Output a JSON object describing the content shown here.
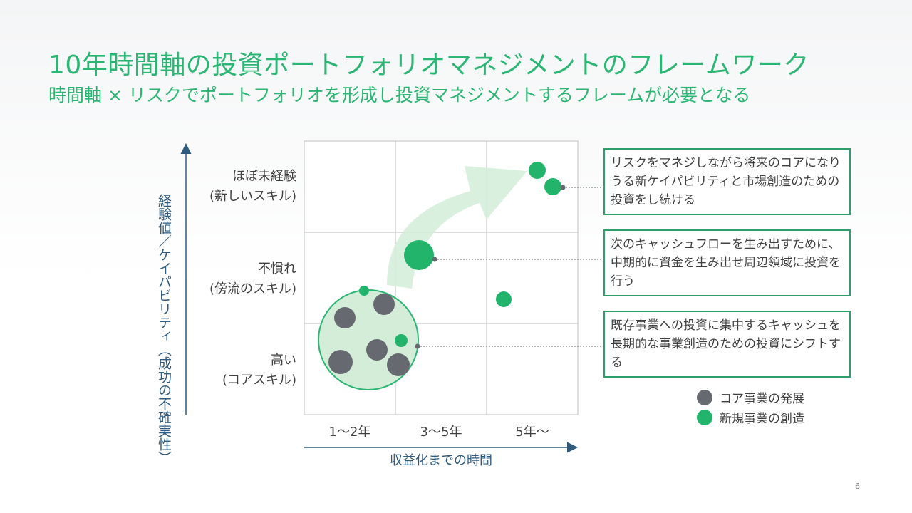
{
  "title": "10年時間軸の投資ポートフォリオマネジメントのフレームワーク",
  "subtitle": "時間軸 × リスクでポートフォリオを形成し投資マネジメントするフレームが必要となる",
  "y_axis_label": "経験値／ケイパビリティ（成功の不確実性）",
  "x_axis_label": "収益化までの時間",
  "rows": [
    {
      "line1": "ほぼ未経験",
      "line2": "(新しいスキル)"
    },
    {
      "line1": "不慣れ",
      "line2": "(傍流のスキル)"
    },
    {
      "line1": "高い",
      "line2": "(コアスキル)"
    }
  ],
  "columns": [
    "1～2年",
    "3～5年",
    "5年～"
  ],
  "callouts": [
    "リスクをマネジしながら将来のコアになりうる新ケイパビリティと市場創造のための投資をし続ける",
    "次のキャッシュフローを生み出すために、中期的に資金を生み出せ周辺領域に投資を行う",
    "既存事業への投資に集中するキャッシュを長期的な事業創造のための投資にシフトする"
  ],
  "legend": [
    {
      "label": "コア事業の発展",
      "color": "#666a70"
    },
    {
      "label": "新規事業の創造",
      "color": "#22b46b"
    }
  ],
  "colors": {
    "core": "#666a70",
    "new": "#22b46b",
    "accent": "#2bb673"
  },
  "page_number": "6"
}
